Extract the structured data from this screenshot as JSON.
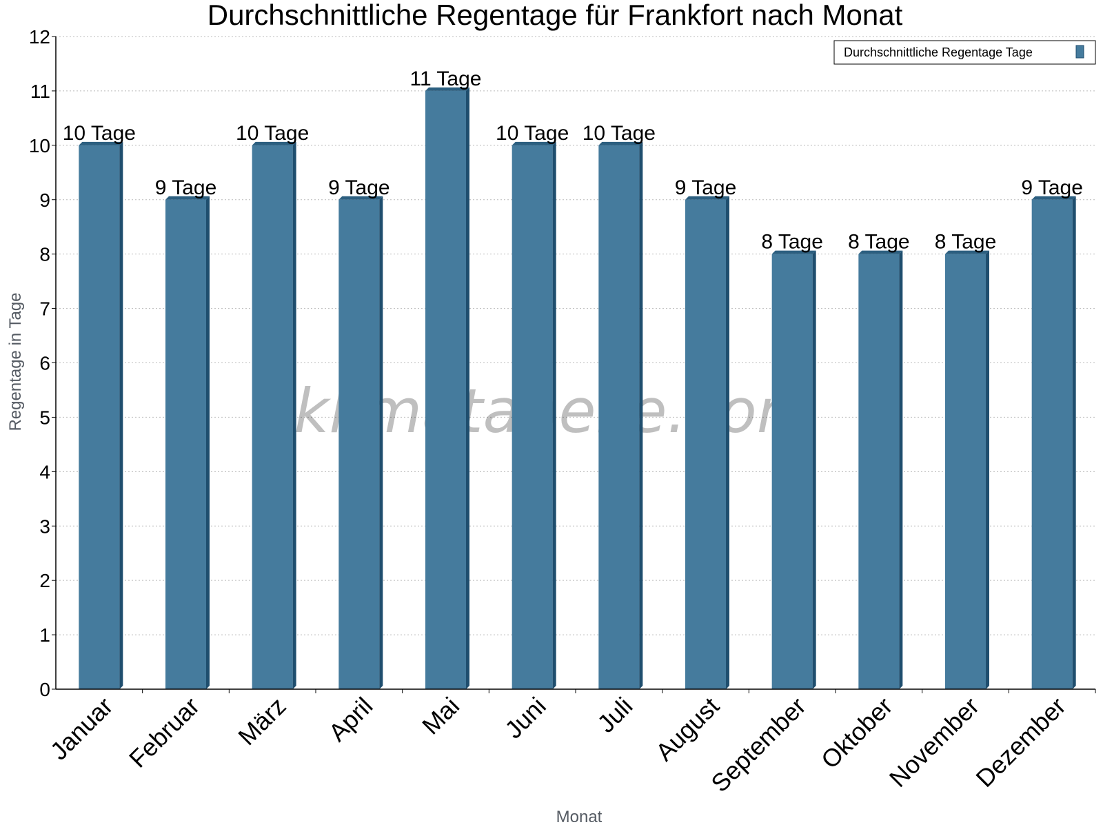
{
  "watermark": "klimatabelle.com",
  "colors": {
    "bar_front": "#457b9d",
    "bar_side": "#1f4e6e",
    "bar_top": "#2c5f80",
    "gridline": "#bbbbbb",
    "axis": "#000000",
    "axis_title": "#555b63"
  },
  "chart_data": {
    "type": "bar",
    "title": "Durchschnittliche Regentage für Frankfort nach Monat",
    "xlabel": "Monat",
    "ylabel": "Regentage in Tage",
    "categories": [
      "Januar",
      "Februar",
      "März",
      "April",
      "Mai",
      "Juni",
      "Juli",
      "August",
      "September",
      "Oktober",
      "November",
      "Dezember"
    ],
    "series": [
      {
        "name": "Durchschnittliche Regentage Tage",
        "values": [
          10,
          9,
          10,
          9,
          11,
          10,
          10,
          9,
          8,
          8,
          8,
          9
        ]
      }
    ],
    "data_labels": [
      "10 Tage",
      "9 Tage",
      "10 Tage",
      "9 Tage",
      "11 Tage",
      "10 Tage",
      "10 Tage",
      "9 Tage",
      "8 Tage",
      "8 Tage",
      "8 Tage",
      "9 Tage"
    ],
    "ylim": [
      0,
      12
    ],
    "yticks": [
      "0",
      "1",
      "2",
      "3",
      "4",
      "5",
      "6",
      "7",
      "8",
      "9",
      "10",
      "11",
      "12"
    ],
    "grid": true,
    "legend_position": "top-right"
  }
}
